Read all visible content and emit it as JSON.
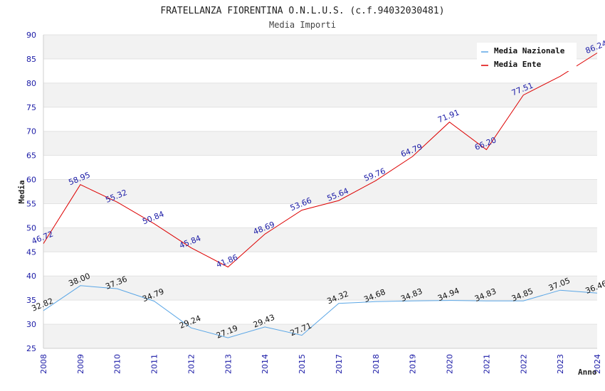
{
  "chart_data": {
    "type": "line",
    "title": "FRATELLANZA FIORENTINA O.N.L.U.S. (c.f.94032030481)",
    "subtitle": "Media Importi",
    "xlabel": "Anno",
    "ylabel": "Media",
    "ylim": [
      25,
      90
    ],
    "yticks": [
      25,
      30,
      35,
      40,
      45,
      50,
      55,
      60,
      65,
      70,
      75,
      80,
      85,
      90
    ],
    "categories": [
      "2008",
      "2009",
      "2010",
      "2011",
      "2012",
      "2013",
      "2014",
      "2015",
      "2017",
      "2018",
      "2019",
      "2020",
      "2021",
      "2022",
      "2023",
      "2024"
    ],
    "series": [
      {
        "name": "Media Nazionale",
        "color": "#5aa6e6",
        "values": [
          32.82,
          38.0,
          37.36,
          34.79,
          29.24,
          27.19,
          29.43,
          27.71,
          34.32,
          34.68,
          34.83,
          34.94,
          34.83,
          34.85,
          37.05,
          36.46
        ],
        "labels": [
          "32.82",
          "38.00",
          "37.36",
          "34.79",
          "29.24",
          "27.19",
          "29.43",
          "27.71",
          "34.32",
          "34.68",
          "34.83",
          "34.94",
          "34.83",
          "34.85",
          "37.05",
          "36.46"
        ]
      },
      {
        "name": "Media Ente",
        "color": "#dd0000",
        "values": [
          46.72,
          58.95,
          55.32,
          50.84,
          45.84,
          41.86,
          48.69,
          53.66,
          55.64,
          59.76,
          64.79,
          71.91,
          66.2,
          77.51,
          81.4,
          86.24
        ],
        "labels": [
          "46.72",
          "58.95",
          "55.32",
          "50.84",
          "45.84",
          "41.86",
          "48.69",
          "53.66",
          "55.64",
          "59.76",
          "64.79",
          "71.91",
          "66.20",
          "77.51",
          "",
          "86.24"
        ]
      }
    ],
    "grid": true,
    "legend": "top-right"
  }
}
